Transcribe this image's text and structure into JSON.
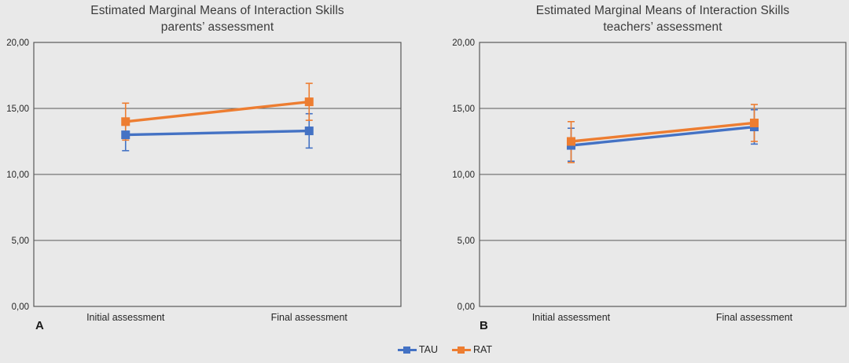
{
  "chart_data": [
    {
      "type": "line",
      "panel_label": "A",
      "title_line1": "Estimated Marginal Means of Interaction Skills",
      "title_line2": "parents’ assessment",
      "categories": [
        "Initial assessment",
        "Final assessment"
      ],
      "xlabel": "",
      "ylabel": "",
      "ylim": [
        0,
        20
      ],
      "ytick_values": [
        0,
        5,
        10,
        15,
        20
      ],
      "ytick_labels": [
        "0,00",
        "5,00",
        "10,00",
        "15,00",
        "20,00"
      ],
      "grid": true,
      "legend_position": "bottom-center-shared",
      "series": [
        {
          "name": "TAU",
          "color": "#4472C4",
          "values": [
            13.0,
            13.3
          ],
          "err_low": [
            11.8,
            12.0
          ],
          "err_high": [
            14.2,
            14.6
          ]
        },
        {
          "name": "RAT",
          "color": "#ED7D31",
          "values": [
            14.0,
            15.5
          ],
          "err_low": [
            12.6,
            14.1
          ],
          "err_high": [
            15.4,
            16.9
          ]
        }
      ]
    },
    {
      "type": "line",
      "panel_label": "B",
      "title_line1": "Estimated Marginal Means of Interaction Skills",
      "title_line2": "teachers’ assessment",
      "categories": [
        "Initial assessment",
        "Final assessment"
      ],
      "xlabel": "",
      "ylabel": "",
      "ylim": [
        0,
        20
      ],
      "ytick_values": [
        0,
        5,
        10,
        15,
        20
      ],
      "ytick_labels": [
        "0,00",
        "5,00",
        "10,00",
        "15,00",
        "20,00"
      ],
      "grid": true,
      "legend_position": "bottom-center-shared",
      "series": [
        {
          "name": "TAU",
          "color": "#4472C4",
          "values": [
            12.2,
            13.6
          ],
          "err_low": [
            11.0,
            12.3
          ],
          "err_high": [
            13.5,
            14.9
          ]
        },
        {
          "name": "RAT",
          "color": "#ED7D31",
          "values": [
            12.5,
            13.9
          ],
          "err_low": [
            10.9,
            12.5
          ],
          "err_high": [
            14.0,
            15.3
          ]
        }
      ]
    }
  ],
  "legend": {
    "items": [
      {
        "label": "TAU",
        "color": "#4472C4"
      },
      {
        "label": "RAT",
        "color": "#ED7D31"
      }
    ]
  },
  "colors": {
    "background": "#E9E9E9",
    "axis": "#595959",
    "tick_text": "#262626",
    "title_text": "#3B3B3B"
  }
}
